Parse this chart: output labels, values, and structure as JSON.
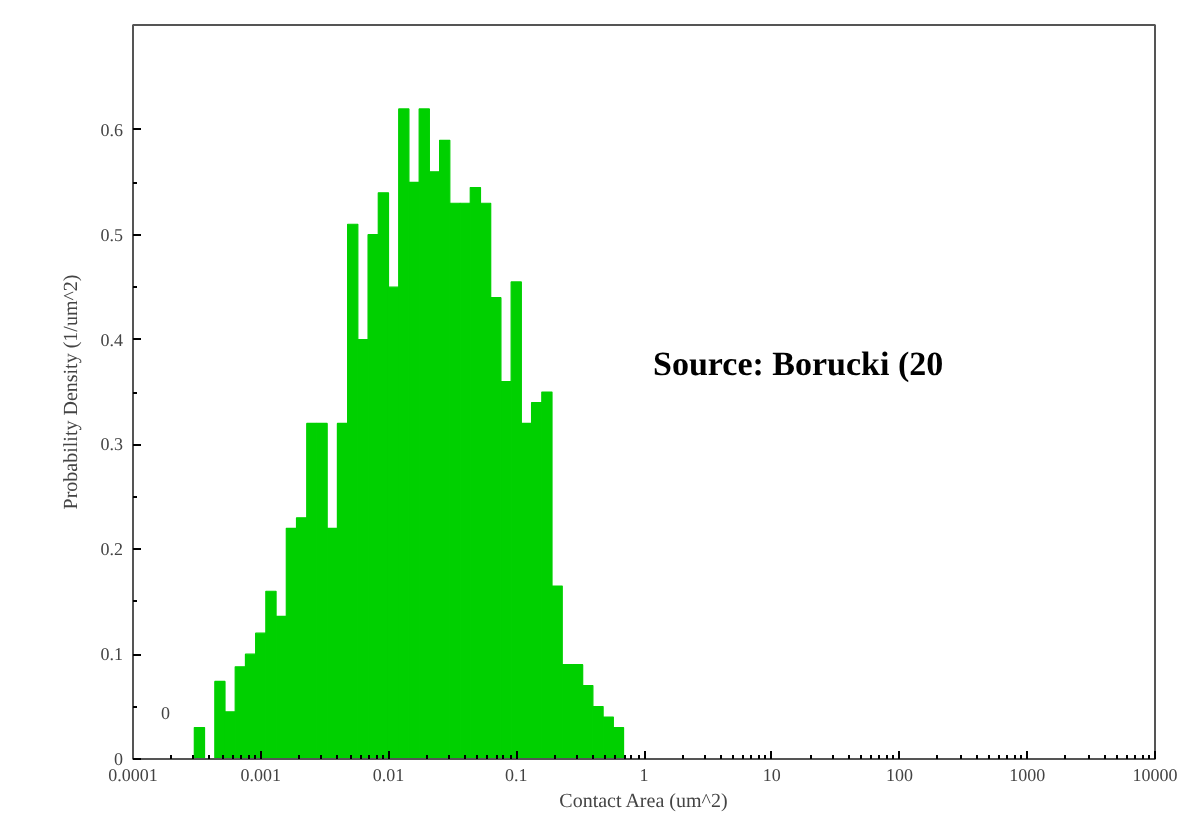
{
  "chart_data": {
    "type": "histogram",
    "xlabel": "Contact Area (um^2)",
    "ylabel": "Probability Density (1/um^2)",
    "bins": [
      0.000302,
      0.000363,
      0.000437,
      0.000525,
      0.000631,
      0.000759,
      0.000912,
      0.001096,
      0.001318,
      0.001585,
      0.001905,
      0.002291,
      0.002754,
      0.003311,
      0.003981,
      0.004786,
      0.005754,
      0.006918,
      0.008318,
      0.01,
      0.01202,
      0.01445,
      0.01738,
      0.02089,
      0.02512,
      0.0302,
      0.03631,
      0.04365,
      0.05248,
      0.0631,
      0.07586,
      0.0912,
      0.1096,
      0.1318,
      0.1585,
      0.1905,
      0.2291,
      0.2754,
      0.3311,
      0.3981,
      0.4786,
      0.5754,
      0.6918
    ],
    "values": [
      0.03,
      0,
      0.074,
      0.045,
      0.088,
      0.1,
      0.12,
      0.16,
      0.136,
      0.22,
      0.23,
      0.32,
      0.32,
      0.22,
      0.32,
      0.51,
      0.4,
      0.5,
      0.54,
      0.45,
      0.62,
      0.55,
      0.62,
      0.56,
      0.59,
      0.53,
      0.53,
      0.545,
      0.53,
      0.44,
      0.36,
      0.455,
      0.32,
      0.34,
      0.35,
      0.165,
      0.09,
      0.09,
      0.07,
      0.05,
      0.04,
      0.03
    ],
    "color": "#00d000",
    "log": "x",
    "xlim": [
      0.0001,
      10000
    ],
    "xticks": [
      0.0001,
      0.001,
      0.01,
      0.1,
      1,
      10,
      100,
      1000,
      10000
    ],
    "ylim": [
      0,
      0.7
    ],
    "yticks": [
      0,
      0.1,
      0.2,
      0.3,
      0.4,
      0.5,
      0.6
    ],
    "grid": false,
    "annotations": [
      "0",
      "Source: Borucki (20"
    ]
  }
}
